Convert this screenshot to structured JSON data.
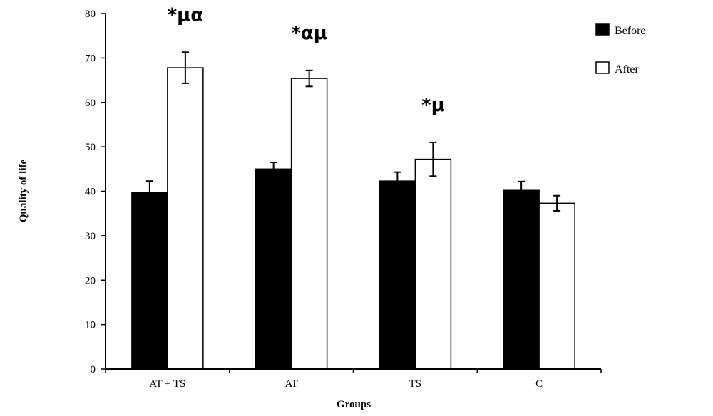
{
  "chart_data": {
    "type": "bar",
    "title": "",
    "xlabel": "Groups",
    "ylabel": "Quality of life",
    "ylim": [
      0,
      80
    ],
    "yticks": [
      0,
      10,
      20,
      30,
      40,
      50,
      60,
      70,
      80
    ],
    "categories": [
      "AT + TS",
      "AT",
      "TS",
      "C"
    ],
    "series": [
      {
        "name": "Before",
        "color": "#000000",
        "values": [
          39.7,
          45.0,
          42.3,
          40.2
        ],
        "errors": [
          2.6,
          1.5,
          2.0,
          2.0
        ]
      },
      {
        "name": "After",
        "color": "#ffffff",
        "values": [
          67.8,
          65.4,
          47.2,
          37.3
        ],
        "errors": [
          3.5,
          1.8,
          3.8,
          1.7
        ]
      }
    ],
    "annotations": [
      "*μα",
      "*αμ",
      "*μ",
      ""
    ],
    "legend_position": "top-right",
    "grid": false
  }
}
